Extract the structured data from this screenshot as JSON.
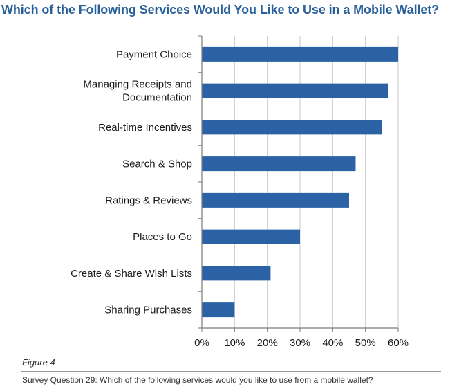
{
  "chart_data": {
    "type": "bar",
    "orientation": "horizontal",
    "title": "Which of the Following Services Would You Like to Use in a Mobile Wallet?",
    "categories": [
      [
        "Payment Choice"
      ],
      [
        "Managing Receipts and",
        "Documentation"
      ],
      [
        "Real-time Incentives"
      ],
      [
        "Search & Shop"
      ],
      [
        "Ratings & Reviews"
      ],
      [
        "Places to Go"
      ],
      [
        "Create & Share Wish Lists"
      ],
      [
        "Sharing Purchases"
      ]
    ],
    "values": [
      60,
      57,
      55,
      47,
      45,
      30,
      21,
      10
    ],
    "xlim": [
      0,
      60
    ],
    "xticks": [
      0,
      10,
      20,
      30,
      40,
      50,
      60
    ],
    "xtick_labels": [
      "0%",
      "10%",
      "20%",
      "30%",
      "40%",
      "50%",
      "60%"
    ],
    "grid": "vertical",
    "bar_color": "#2b62a5",
    "grid_color": "#c8c8c8"
  },
  "figure_label": "Figure 4",
  "caption": "Survey Question 29:  Which of the following services would you like to use from a mobile wallet?"
}
